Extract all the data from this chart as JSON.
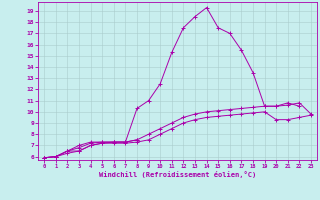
{
  "title": "",
  "xlabel": "Windchill (Refroidissement éolien,°C)",
  "ylabel": "",
  "bg_color": "#c8eeee",
  "line_color": "#aa00aa",
  "grid_color": "#aacccc",
  "xlim": [
    -0.5,
    23.5
  ],
  "ylim": [
    5.7,
    19.8
  ],
  "yticks": [
    6,
    7,
    8,
    9,
    10,
    11,
    12,
    13,
    14,
    15,
    16,
    17,
    18,
    19
  ],
  "xticks": [
    0,
    1,
    2,
    3,
    4,
    5,
    6,
    7,
    8,
    9,
    10,
    11,
    12,
    13,
    14,
    15,
    16,
    17,
    18,
    19,
    20,
    21,
    22,
    23
  ],
  "series": [
    {
      "x": [
        0,
        1,
        2,
        3,
        4,
        5,
        6,
        7,
        8
      ],
      "y": [
        5.9,
        6.0,
        6.5,
        6.5,
        7.0,
        7.2,
        7.3,
        7.3,
        7.5
      ]
    },
    {
      "x": [
        0,
        1,
        2,
        3,
        4,
        5,
        6,
        7,
        8,
        9,
        10,
        11,
        12,
        13,
        14,
        15,
        16,
        17,
        18,
        19,
        20,
        21,
        22,
        23
      ],
      "y": [
        5.9,
        6.0,
        6.3,
        6.5,
        7.0,
        7.2,
        7.2,
        7.2,
        7.3,
        7.5,
        8.0,
        8.5,
        9.0,
        9.3,
        9.5,
        9.6,
        9.7,
        9.8,
        9.9,
        10.0,
        9.3,
        9.3,
        9.5,
        9.7
      ]
    },
    {
      "x": [
        0,
        1,
        2,
        3,
        4,
        5,
        6,
        7,
        8,
        9,
        10,
        11,
        12,
        13,
        14,
        15,
        16,
        17,
        18,
        19,
        20,
        21,
        22,
        23
      ],
      "y": [
        5.9,
        6.0,
        6.5,
        6.8,
        7.2,
        7.3,
        7.3,
        7.3,
        7.5,
        8.0,
        8.5,
        9.0,
        9.5,
        9.8,
        10.0,
        10.1,
        10.2,
        10.3,
        10.4,
        10.5,
        10.5,
        10.6,
        10.8,
        9.8
      ]
    },
    {
      "x": [
        0,
        1,
        2,
        3,
        4,
        5,
        6,
        7,
        8,
        9,
        10,
        11,
        12,
        13,
        14,
        15,
        16,
        17,
        18,
        19,
        20,
        21,
        22
      ],
      "y": [
        5.9,
        6.0,
        6.5,
        7.0,
        7.3,
        7.3,
        7.3,
        7.3,
        10.3,
        11.0,
        12.5,
        15.3,
        17.5,
        18.5,
        19.3,
        17.5,
        17.0,
        15.5,
        13.5,
        10.5,
        10.5,
        10.8,
        10.5
      ]
    }
  ]
}
